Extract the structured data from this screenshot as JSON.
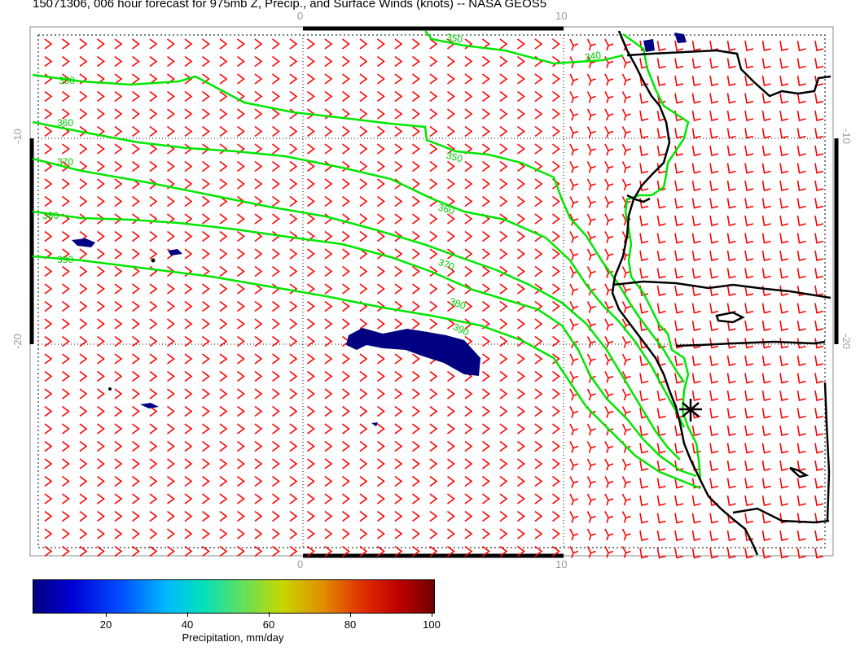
{
  "title": "15071306, 006 hour forecast for 975mb Z, Precip., and Surface Winds (knots) -- NASA GEOS5",
  "axes": {
    "top_labels": [
      "0",
      "10"
    ],
    "bottom_labels": [
      "0",
      "10"
    ],
    "left_labels": [
      "-10",
      "-20"
    ],
    "right_labels": [
      "-10",
      "-20"
    ]
  },
  "contour_labels": [
    "350",
    "340",
    "350",
    "360",
    "370",
    "380",
    "390",
    "350",
    "360",
    "370",
    "380",
    "390"
  ],
  "colors": {
    "barb": "#ff0000",
    "contour": "#00e600",
    "coast": "#000000",
    "precip": "#000080",
    "grid": "#000000"
  },
  "colorbar": {
    "ticks": [
      "20",
      "40",
      "60",
      "80",
      "100"
    ],
    "label": "Precipitation, mm/day"
  }
}
